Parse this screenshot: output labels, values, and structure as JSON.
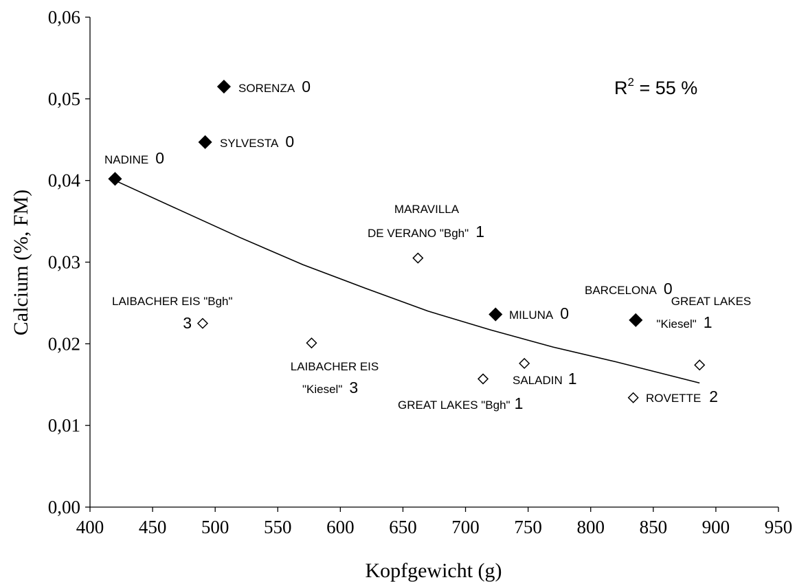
{
  "chart_data": {
    "type": "scatter",
    "xlabel": "Kopfgewicht (g)",
    "ylabel": "Calcium (%, FM)",
    "xlim": [
      400,
      950
    ],
    "ylim": [
      0,
      0.06
    ],
    "x_ticks": [
      "400",
      "450",
      "500",
      "550",
      "600",
      "650",
      "700",
      "750",
      "800",
      "850",
      "900",
      "950"
    ],
    "y_ticks": [
      "0,00",
      "0,01",
      "0,02",
      "0,03",
      "0,04",
      "0,05",
      "0,06"
    ],
    "grid": false,
    "annotation": {
      "text": "R",
      "sup": "2",
      "rest": " = 55 %"
    },
    "marker_colors": {
      "filled": "#000000",
      "open": "#ffffff"
    },
    "points": [
      {
        "label_lines": [
          "SORENZA"
        ],
        "rating": "0",
        "x": 507,
        "y": 0.0515,
        "filled": true
      },
      {
        "label_lines": [
          "SYLVESTA"
        ],
        "rating": "0",
        "x": 492,
        "y": 0.0447,
        "filled": true
      },
      {
        "label_lines": [
          "NADINE"
        ],
        "rating": "0",
        "x": 420,
        "y": 0.0402,
        "filled": true
      },
      {
        "label_lines": [
          "MARAVILLA",
          "DE VERANO \"Bgh\""
        ],
        "rating": "1",
        "x": 662,
        "y": 0.0305,
        "filled": false
      },
      {
        "label_lines": [
          "BARCELONA"
        ],
        "rating": "0",
        "x": 836,
        "y": 0.0229,
        "filled": true
      },
      {
        "label_lines": [
          "MILUNA"
        ],
        "rating": "0",
        "x": 724,
        "y": 0.0236,
        "filled": true
      },
      {
        "label_lines": [
          "LAIBACHER EIS \"Bgh\""
        ],
        "rating": "3",
        "x": 490,
        "y": 0.0225,
        "filled": false
      },
      {
        "label_lines": [
          "GREAT LAKES",
          "\"Kiesel\""
        ],
        "rating": "1",
        "x": 887,
        "y": 0.0174,
        "filled": false
      },
      {
        "label_lines": [
          "LAIBACHER EIS",
          "\"Kiesel\""
        ],
        "rating": "3",
        "x": 577,
        "y": 0.0201,
        "filled": false
      },
      {
        "label_lines": [
          "SALADIN"
        ],
        "rating": "1",
        "x": 747,
        "y": 0.0176,
        "filled": false
      },
      {
        "label_lines": [
          "GREAT LAKES \"Bgh\""
        ],
        "rating": "1",
        "x": 714,
        "y": 0.0157,
        "filled": false
      },
      {
        "label_lines": [
          "ROVETTE"
        ],
        "rating": "2",
        "x": 834,
        "y": 0.0134,
        "filled": false
      }
    ],
    "trendline": {
      "x": [
        420,
        470,
        520,
        570,
        620,
        670,
        720,
        770,
        820,
        887
      ],
      "y": [
        0.04,
        0.0365,
        0.033,
        0.0297,
        0.0268,
        0.024,
        0.0217,
        0.0196,
        0.0178,
        0.0152
      ]
    }
  }
}
